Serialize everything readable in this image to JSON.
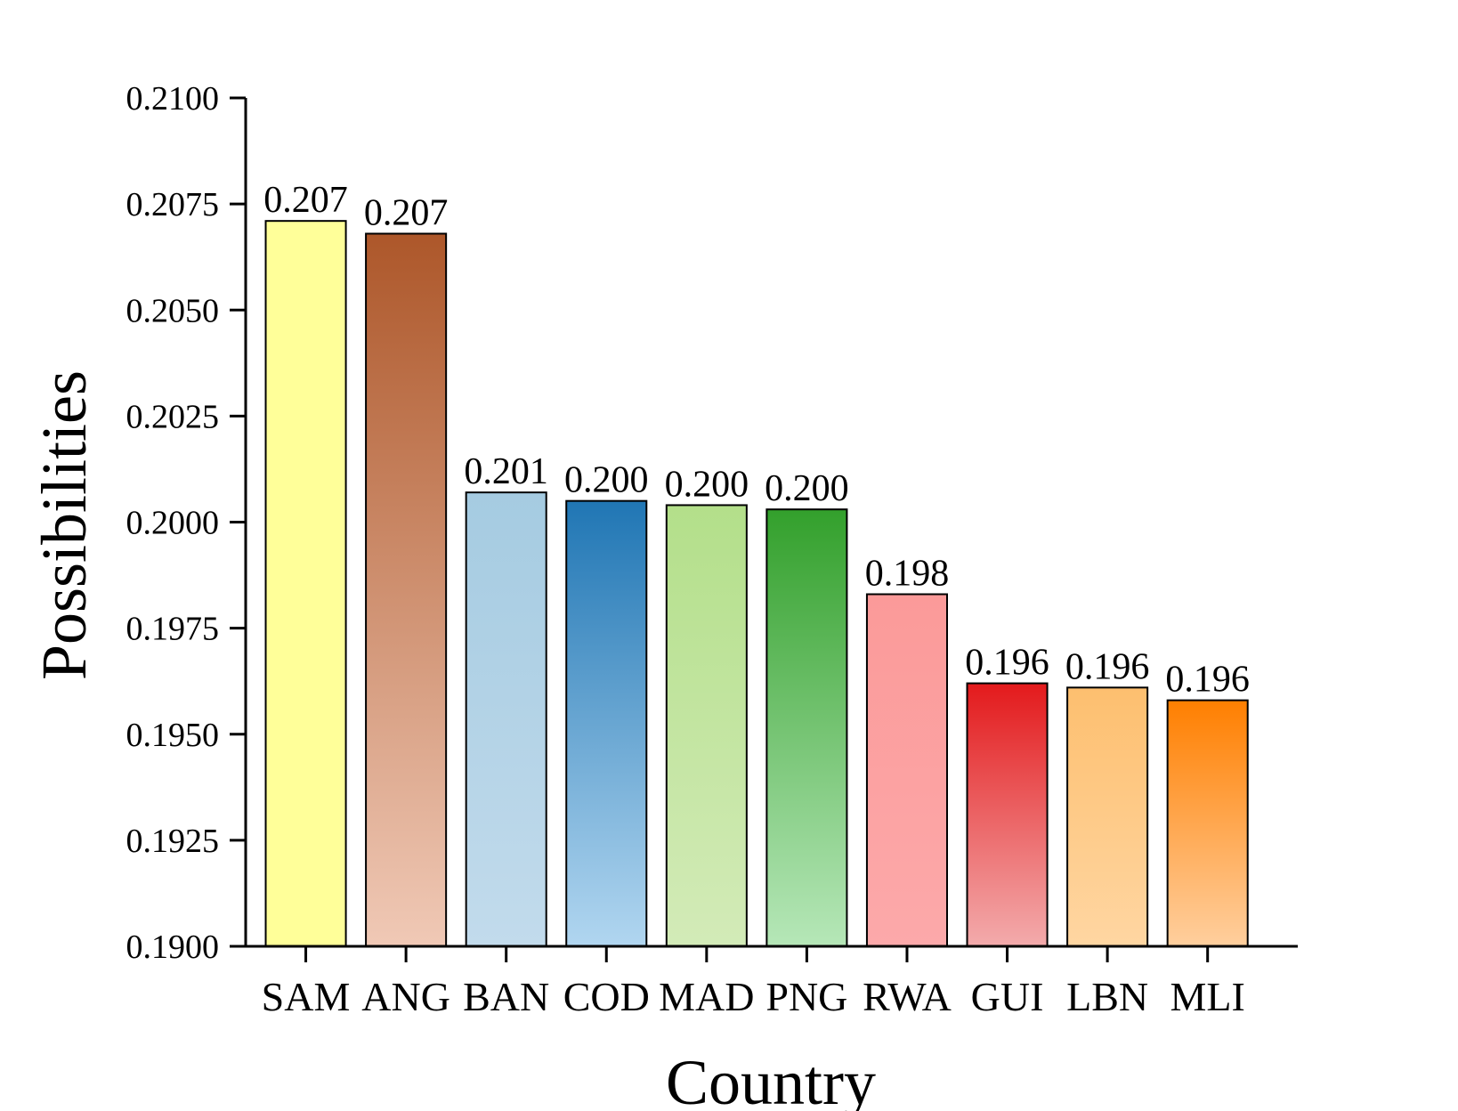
{
  "chart_data": {
    "type": "bar",
    "title": "",
    "xlabel": "Country",
    "ylabel": "Possibilities",
    "ylim": [
      0.19,
      0.21
    ],
    "yticks": [
      "0.1900",
      "0.1925",
      "0.1950",
      "0.1975",
      "0.2000",
      "0.2025",
      "0.2050",
      "0.2075",
      "0.2100"
    ],
    "grid": false,
    "legend": "none",
    "categories": [
      "SAM",
      "ANG",
      "BAN",
      "COD",
      "MAD",
      "PNG",
      "RWA",
      "GUI",
      "LBN",
      "MLI"
    ],
    "values": [
      0.2071,
      0.2068,
      0.2007,
      0.2005,
      0.2004,
      0.2003,
      0.1983,
      0.1962,
      0.1961,
      0.1958
    ],
    "value_labels": [
      "0.207",
      "0.207",
      "0.201",
      "0.200",
      "0.200",
      "0.200",
      "0.198",
      "0.196",
      "0.196",
      "0.196"
    ],
    "bar_colors": [
      {
        "top": "#ffff99",
        "bottom": "#ffff99"
      },
      {
        "top": "#ad572a",
        "bottom": "#f0c9b6"
      },
      {
        "top": "#a5cbe1",
        "bottom": "#c2dbec"
      },
      {
        "top": "#2076b4",
        "bottom": "#b1d6f0"
      },
      {
        "top": "#b3df8a",
        "bottom": "#d3ebb8"
      },
      {
        "top": "#33a02c",
        "bottom": "#b6e7b8"
      },
      {
        "top": "#fb9a99",
        "bottom": "#fca9aa"
      },
      {
        "top": "#e31a1c",
        "bottom": "#f3abac"
      },
      {
        "top": "#fdbf6f",
        "bottom": "#ffd6a2"
      },
      {
        "top": "#ff7f00",
        "bottom": "#ffcf9e"
      }
    ]
  }
}
